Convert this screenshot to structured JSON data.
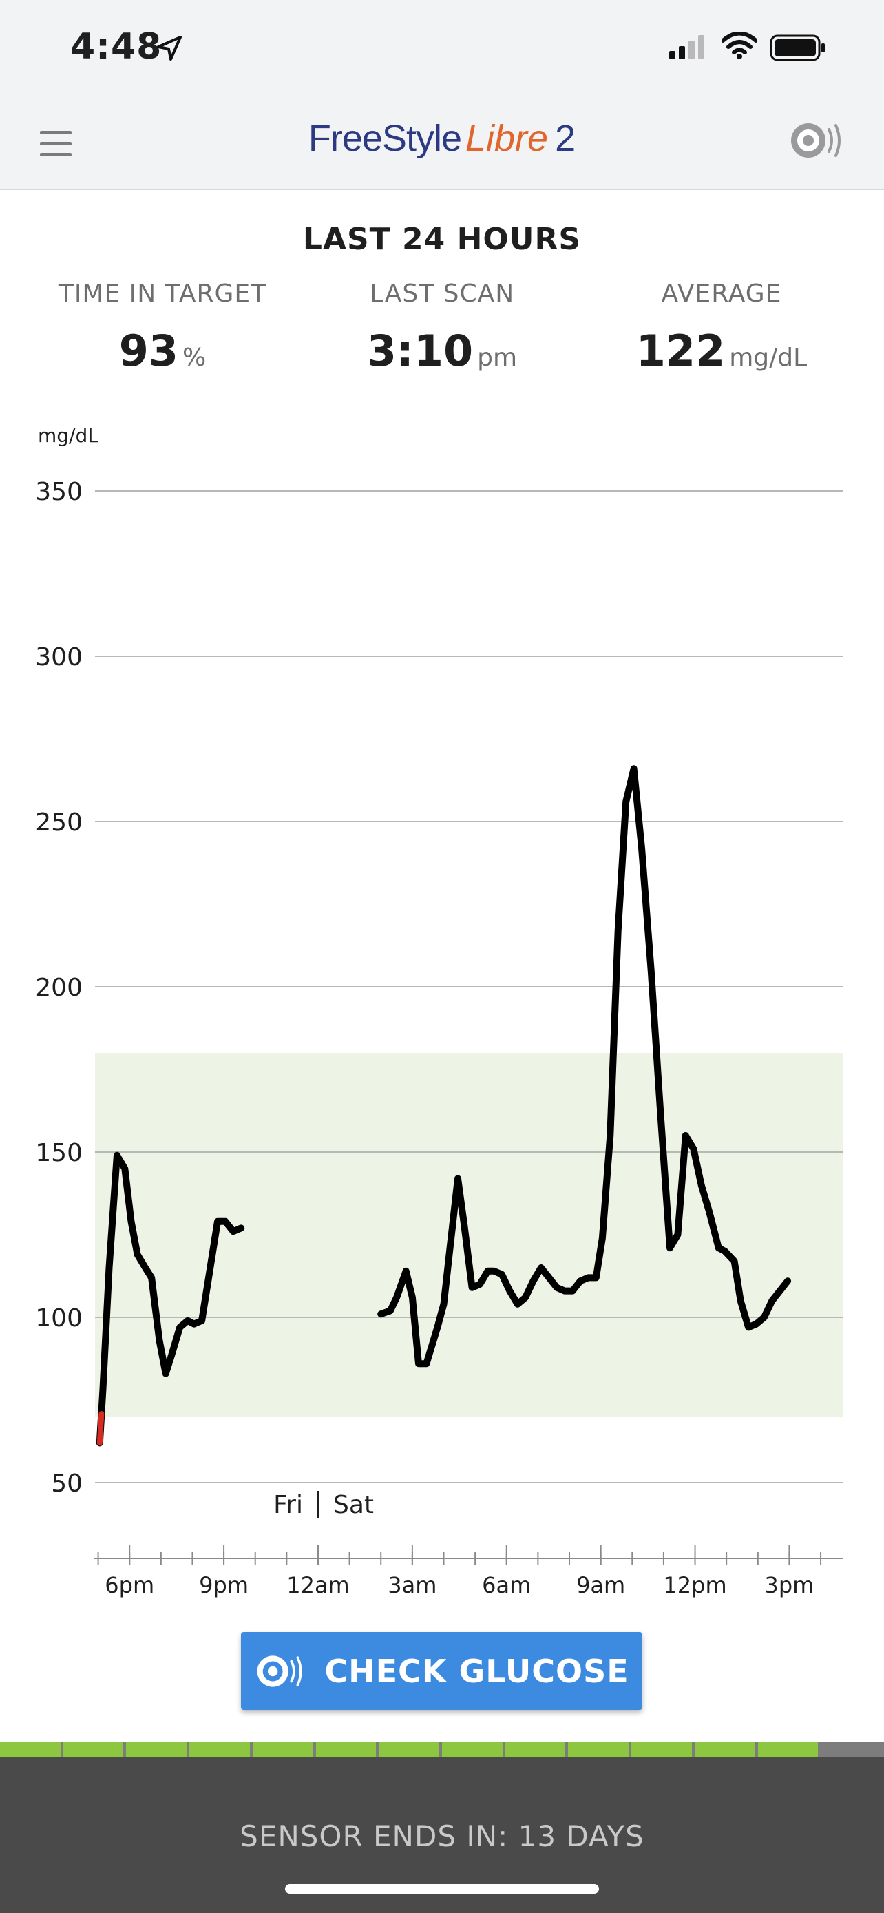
{
  "status_bar": {
    "time": "4:48",
    "location_icon": "location-arrow-icon",
    "signal_icon": "cellular-signal-icon",
    "wifi_icon": "wifi-icon",
    "battery_icon": "battery-icon"
  },
  "header": {
    "menu_icon": "hamburger-menu-icon",
    "brand_part1": "FreeStyle",
    "brand_part2": "Libre",
    "brand_part3": "2",
    "scan_icon": "sensor-scan-icon",
    "brand_colors": {
      "navy": "#2b3a82",
      "orange": "#e0662d"
    }
  },
  "summary": {
    "heading": "LAST 24 HOURS",
    "time_in_target": {
      "label": "TIME IN TARGET",
      "value": "93",
      "unit": "%"
    },
    "last_scan": {
      "label": "LAST SCAN",
      "value": "3:10",
      "unit": "pm"
    },
    "average": {
      "label": "AVERAGE",
      "value": "122",
      "unit": "mg/dL"
    }
  },
  "chart_data": {
    "type": "line",
    "title": "",
    "ylabel": "mg/dL",
    "xlabel": "",
    "ylim": [
      50,
      350
    ],
    "yticks": [
      350,
      300,
      250,
      200,
      150,
      100,
      50
    ],
    "target_range": [
      70,
      180
    ],
    "xlim_hours": [
      16.9,
      40.7
    ],
    "xticks": [
      {
        "label": "6pm",
        "hour": 18
      },
      {
        "label": "9pm",
        "hour": 21
      },
      {
        "label": "12am",
        "hour": 24
      },
      {
        "label": "3am",
        "hour": 27
      },
      {
        "label": "6am",
        "hour": 30
      },
      {
        "label": "9am",
        "hour": 33
      },
      {
        "label": "12pm",
        "hour": 36
      },
      {
        "label": "3pm",
        "hour": 39
      }
    ],
    "day_divider": {
      "left_label": "Fri",
      "right_label": "Sat",
      "hour": 24
    },
    "colors": {
      "line": "#000000",
      "target_band": "#eef4e5",
      "low": "#d62b20",
      "grid": "#b8b8b8"
    },
    "series": [
      {
        "name": "Glucose",
        "segments": [
          [
            [
              17.05,
              62
            ],
            [
              17.15,
              78
            ],
            [
              17.35,
              115
            ],
            [
              17.6,
              149
            ],
            [
              17.85,
              145
            ],
            [
              18.05,
              129
            ],
            [
              18.25,
              119
            ],
            [
              18.5,
              115
            ],
            [
              18.7,
              112
            ],
            [
              18.95,
              93
            ],
            [
              19.15,
              83
            ],
            [
              19.35,
              89
            ],
            [
              19.6,
              97
            ],
            [
              19.85,
              99
            ],
            [
              20.05,
              98
            ],
            [
              20.3,
              99
            ],
            [
              20.5,
              111
            ],
            [
              20.8,
              129
            ],
            [
              21.05,
              129
            ],
            [
              21.3,
              126
            ],
            [
              21.55,
              127
            ]
          ],
          [
            [
              26.0,
              101
            ],
            [
              26.3,
              102
            ],
            [
              26.5,
              106
            ],
            [
              26.8,
              114
            ],
            [
              27.0,
              106
            ],
            [
              27.2,
              86
            ],
            [
              27.45,
              86
            ],
            [
              27.8,
              97
            ],
            [
              28.0,
              104
            ],
            [
              28.2,
              121
            ],
            [
              28.45,
              142
            ],
            [
              28.65,
              128
            ],
            [
              28.9,
              109
            ],
            [
              29.15,
              110
            ],
            [
              29.4,
              114
            ],
            [
              29.6,
              114
            ],
            [
              29.85,
              113
            ],
            [
              30.1,
              108
            ],
            [
              30.35,
              104
            ],
            [
              30.6,
              106
            ],
            [
              30.85,
              111
            ],
            [
              31.1,
              115
            ],
            [
              31.35,
              112
            ],
            [
              31.6,
              109
            ],
            [
              31.85,
              108
            ],
            [
              32.1,
              108
            ],
            [
              32.35,
              111
            ],
            [
              32.6,
              112
            ],
            [
              32.85,
              112
            ],
            [
              33.05,
              124
            ],
            [
              33.3,
              155
            ],
            [
              33.55,
              217
            ],
            [
              33.8,
              256
            ],
            [
              34.05,
              266
            ],
            [
              34.3,
              242
            ],
            [
              34.6,
              205
            ],
            [
              34.9,
              162
            ],
            [
              35.2,
              121
            ],
            [
              35.45,
              125
            ],
            [
              35.7,
              155
            ],
            [
              35.95,
              151
            ],
            [
              36.2,
              140
            ],
            [
              36.45,
              132
            ],
            [
              36.75,
              121
            ],
            [
              36.95,
              120
            ],
            [
              37.25,
              117
            ],
            [
              37.45,
              105
            ],
            [
              37.7,
              97
            ],
            [
              37.95,
              98
            ],
            [
              38.2,
              100
            ],
            [
              38.45,
              105
            ],
            [
              38.7,
              108
            ],
            [
              38.95,
              111
            ]
          ]
        ]
      }
    ]
  },
  "check_button": {
    "label": "CHECK GLUCOSE",
    "icon": "sensor-scan-icon"
  },
  "sensor": {
    "text": "SENSOR ENDS IN: 13 DAYS",
    "days_elapsed_fraction": 0.929,
    "segments_total": 14,
    "segments_filled": 13,
    "colors": {
      "filled": "#8dc63f",
      "remaining": "#7d7d7d"
    }
  }
}
